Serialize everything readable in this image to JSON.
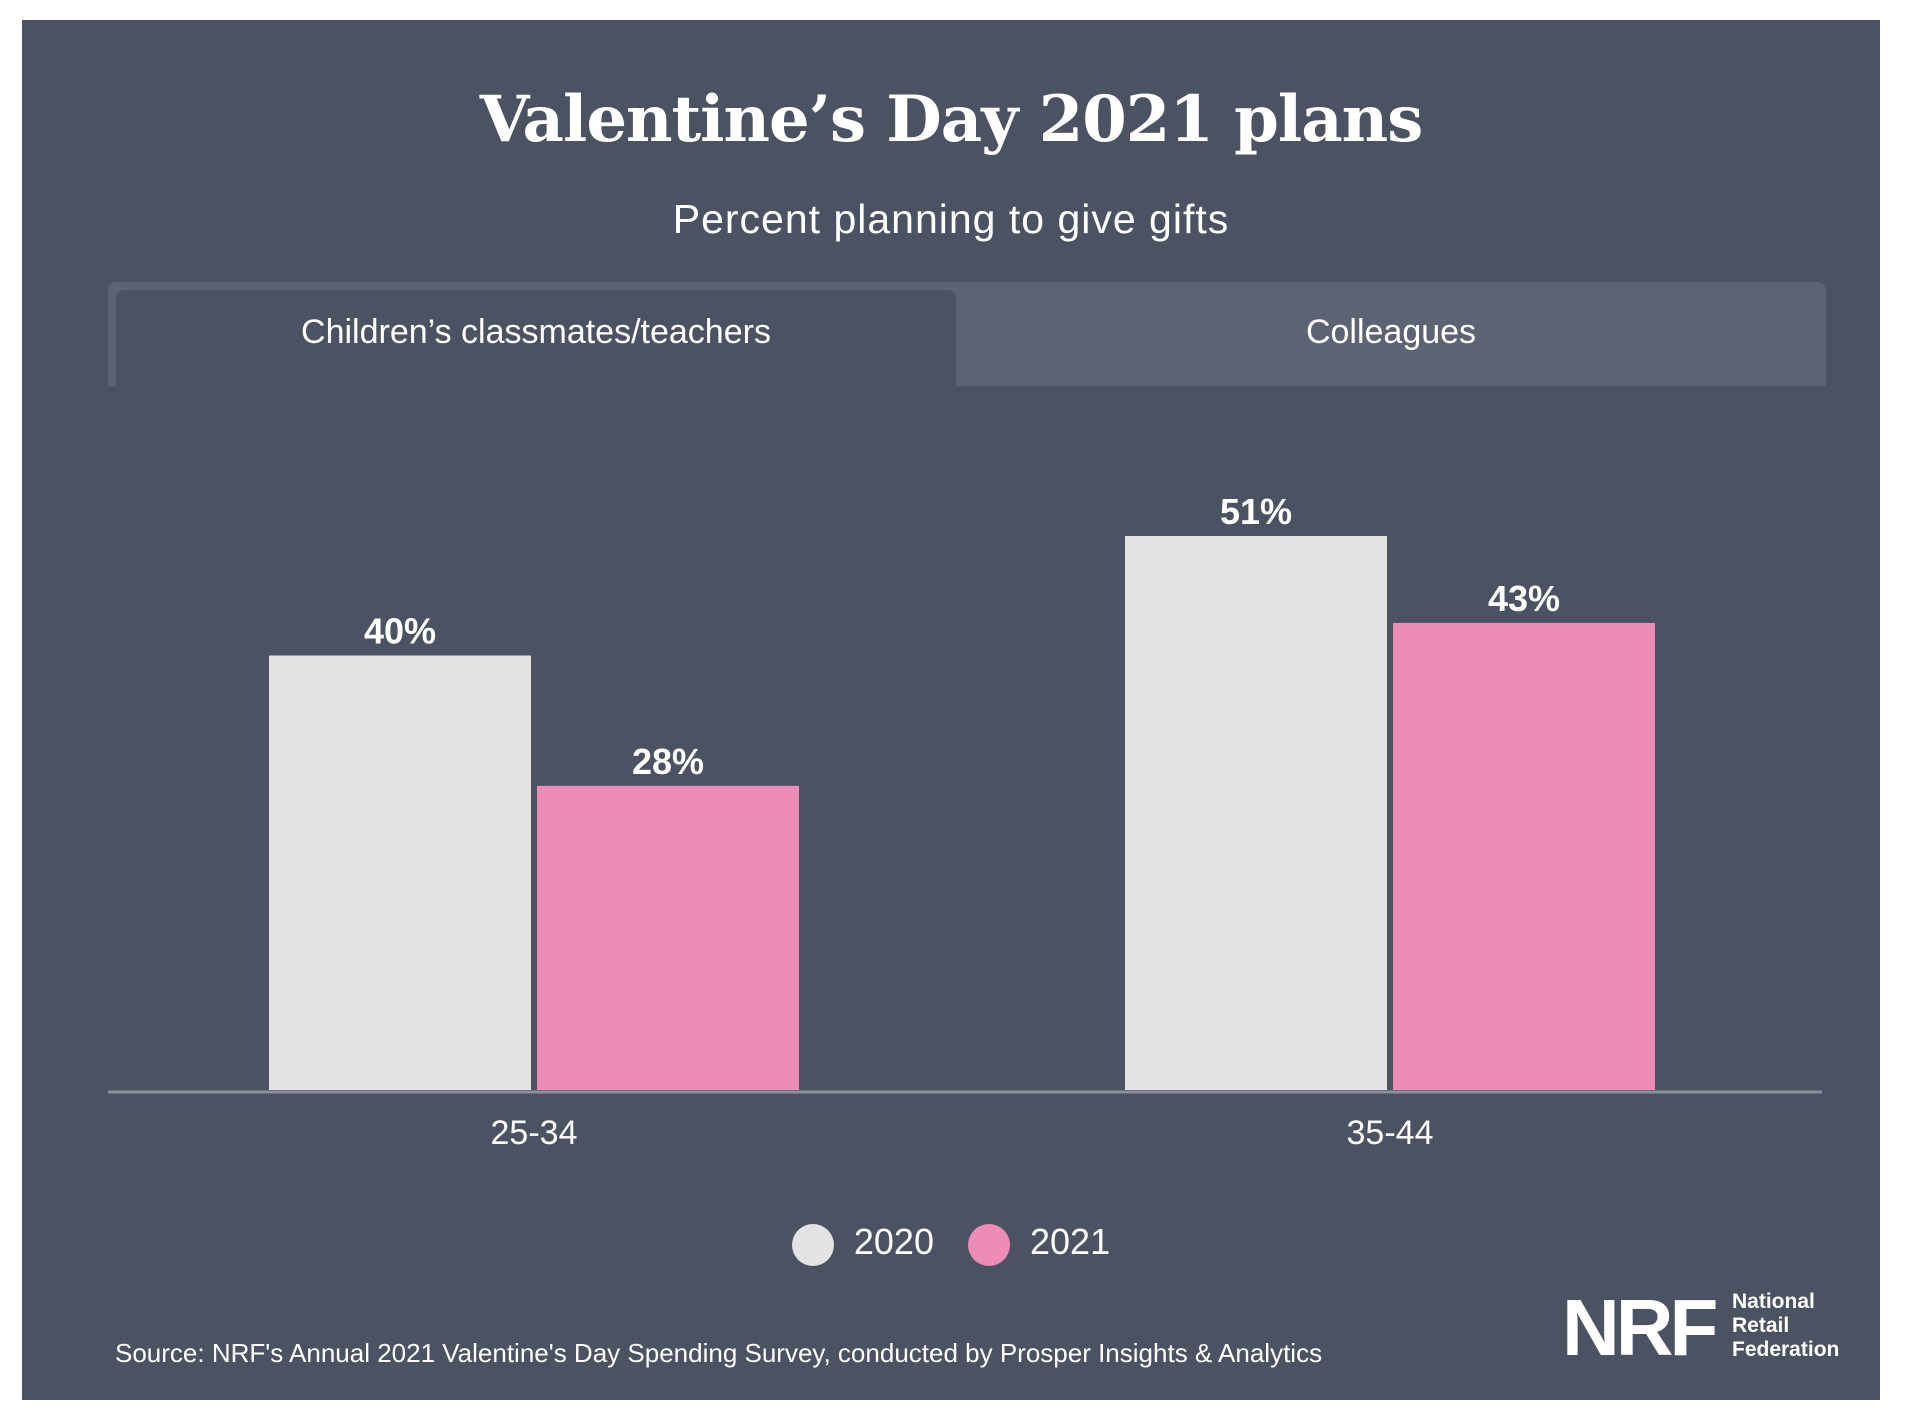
{
  "header": {
    "title": "Valentine’s Day 2021 plans",
    "subtitle": "Percent planning to give gifts"
  },
  "tabs": [
    {
      "label": "Children’s classmates/teachers",
      "active": true
    },
    {
      "label": "Colleagues",
      "active": false
    }
  ],
  "chart_data": {
    "type": "bar",
    "title": "Valentine’s Day 2021 plans",
    "subtitle": "Percent planning to give gifts",
    "categories": [
      "25-34",
      "35-44"
    ],
    "series": [
      {
        "name": "2020",
        "values": [
          40,
          51
        ],
        "labels": [
          "40%",
          "51%"
        ],
        "color": "#e3e3e3"
      },
      {
        "name": "2021",
        "values": [
          28,
          43
        ],
        "labels": [
          "28%",
          "43%"
        ],
        "color": "#ed8db7"
      }
    ],
    "ylim": [
      0,
      51
    ],
    "grid": false,
    "legend_position": "bottom"
  },
  "legend": [
    {
      "label": "2020",
      "color": "#e3e3e3"
    },
    {
      "label": "2021",
      "color": "#ed8db7"
    }
  ],
  "footer": {
    "source": "Source: NRF's Annual 2021 Valentine's Day Spending Survey, conducted by Prosper Insights & Analytics",
    "logo_mark": "NRF",
    "logo_lines": [
      "National",
      "Retail",
      "Federation"
    ]
  }
}
